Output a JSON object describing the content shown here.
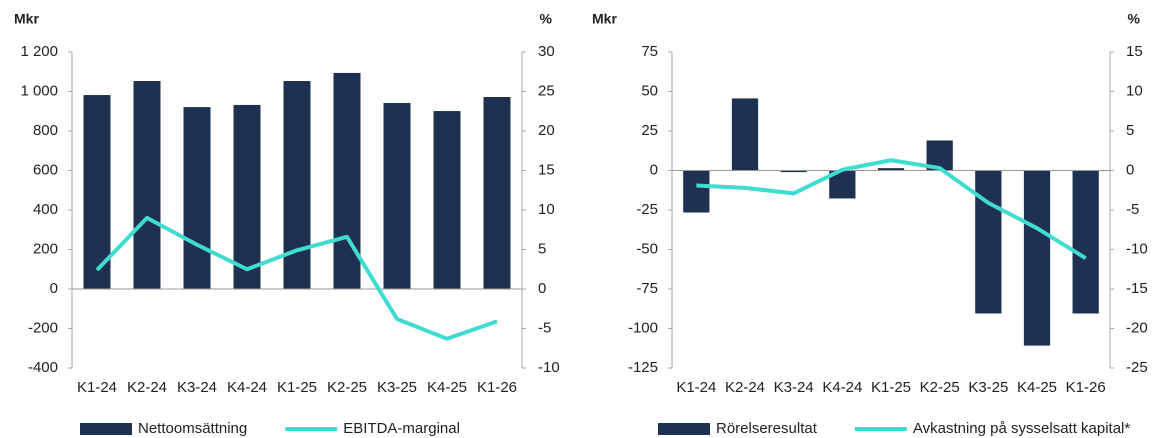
{
  "chart_data": [
    {
      "type": "bar",
      "y_label": "Mkr",
      "y2_label": "%",
      "categories": [
        "K1-24",
        "K2-24",
        "K3-24",
        "K4-24",
        "K1-25",
        "K2-25",
        "K3-25",
        "K4-25",
        "K1-26"
      ],
      "ylim": [
        -400,
        1200
      ],
      "yticks": [
        -400,
        -200,
        0,
        200,
        400,
        600,
        800,
        {
          "value": 1000,
          "label": "1 000"
        },
        {
          "value": 1200,
          "label": "1 200"
        }
      ],
      "y2lim": [
        -10,
        30
      ],
      "y2ticks": [
        -10,
        -5,
        0,
        5,
        10,
        15,
        20,
        25,
        30
      ],
      "series": [
        {
          "name": "Nettoomsättning",
          "type": "bar",
          "color": "#1f3150",
          "values": [
            982,
            1053,
            921,
            932,
            1053,
            1094,
            942,
            901,
            972
          ]
        },
        {
          "name": "EBITDA-marginal",
          "type": "line",
          "axis": "y2",
          "color": "#3fdccf",
          "values": [
            2.4,
            9.0,
            5.6,
            2.5,
            4.9,
            6.6,
            -3.8,
            -6.3,
            -4.1
          ]
        }
      ]
    },
    {
      "type": "bar",
      "y_label": "Mkr",
      "y2_label": "%",
      "categories": [
        "K1-24",
        "K2-24",
        "K3-24",
        "K4-24",
        "K1-25",
        "K2-25",
        "K3-25",
        "K4-25",
        "K1-26"
      ],
      "ylim": [
        -125,
        75
      ],
      "yticks": [
        -125,
        -100,
        -75,
        -50,
        -25,
        0,
        25,
        50,
        75
      ],
      "y2lim": [
        -25,
        15
      ],
      "y2ticks": [
        -25,
        -20,
        -15,
        -10,
        -5,
        0,
        5,
        10,
        15
      ],
      "series": [
        {
          "name": "Rörelseresultat",
          "type": "bar",
          "color": "#1f3150",
          "values": [
            -26.6,
            45.6,
            -1,
            -17.7,
            1.5,
            19,
            -90.5,
            -110.8,
            -90.5
          ]
        },
        {
          "name": "Avkastning på sysselsatt kapital*",
          "type": "line",
          "axis": "y2",
          "color": "#3fdccf",
          "values": [
            -1.9,
            -2.2,
            -2.9,
            0.1,
            1.3,
            0.3,
            -4.1,
            -7.3,
            -11.1
          ]
        }
      ]
    }
  ]
}
